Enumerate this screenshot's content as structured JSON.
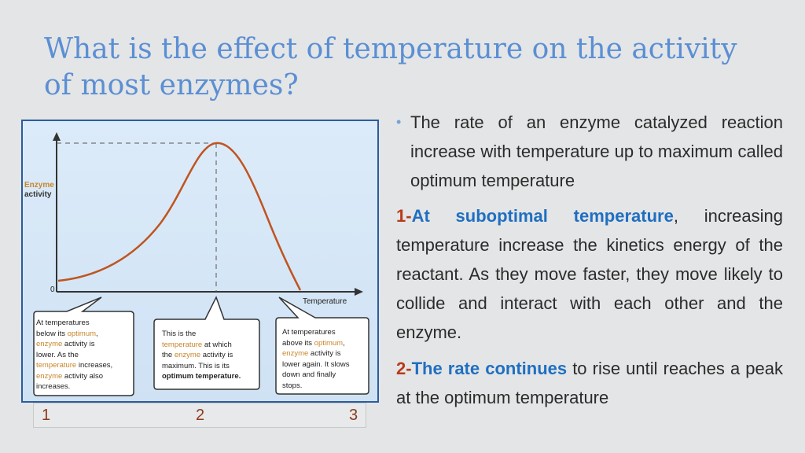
{
  "title_line1": "What is the effect of temperature on the activity",
  "title_line2": "of most enzymes?",
  "figure": {
    "ylabel_line1": "Enzyme",
    "ylabel_line2": "activity",
    "zero_label": "0",
    "xlabel": "Temperature",
    "bubble1": [
      "At temperatures",
      "below its ",
      "optimum",
      ",",
      "enzyme",
      " activity is",
      "lower. As the",
      "temperature",
      " increases,",
      "enzyme",
      " activity also",
      "increases."
    ],
    "bubble2": [
      "This is the",
      "temperature",
      " at which",
      "the ",
      "enzyme",
      " activity is",
      "maximum. This is its",
      "optimum temperature."
    ],
    "bubble3": [
      "At temperatures",
      "above its ",
      "optimum",
      ",",
      "enzyme",
      " activity is",
      "lower again. It slows",
      "down and finally",
      "stops."
    ],
    "colors": {
      "curve": "#c0541f",
      "axis": "#333333",
      "highlight": "#c8862a",
      "border": "#2b5d9c"
    }
  },
  "numbers": [
    "1",
    "2",
    "3"
  ],
  "bullet": "The rate of an enzyme catalyzed reaction increase with temperature up to maximum called optimum temperature",
  "point1": {
    "num": "1-",
    "highlight": "At suboptimal temperature",
    "rest": ", increasing temperature increase the kinetics energy of the reactant. As they move faster, they move likely to collide and interact with each other and the enzyme."
  },
  "point2": {
    "num": "2-",
    "highlight": "The rate continues",
    "rest": " to rise until reaches a peak at the optimum temperature"
  }
}
